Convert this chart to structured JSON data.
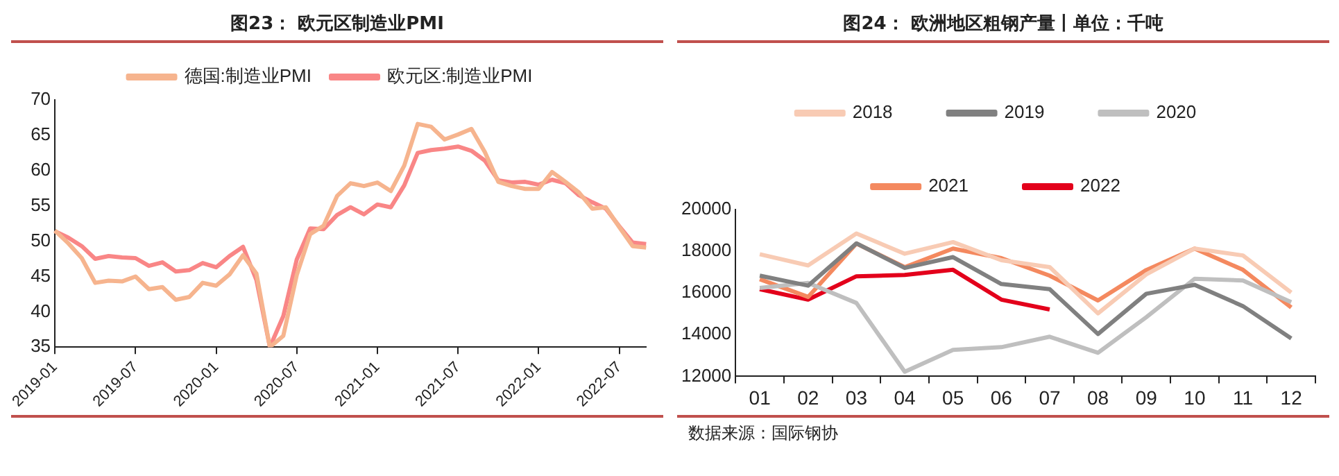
{
  "chart_data": [
    {
      "type": "line",
      "title": "图23： 欧元区制造业PMI",
      "categories": [
        "2019-01",
        null,
        null,
        null,
        null,
        null,
        "2019-07",
        null,
        null,
        null,
        null,
        null,
        "2020-01",
        null,
        null,
        null,
        null,
        null,
        "2020-07",
        null,
        null,
        null,
        null,
        null,
        "2021-01",
        null,
        null,
        null,
        null,
        null,
        "2021-07",
        null,
        null,
        null,
        null,
        null,
        "2022-01",
        null,
        null,
        null,
        null,
        null,
        "2022-07",
        null,
        null
      ],
      "series": [
        {
          "name": "德国:制造业PMI",
          "color": "#f6b48e",
          "values": [
            51.5,
            49.7,
            47.6,
            44.1,
            44.4,
            44.3,
            45.0,
            43.2,
            43.5,
            41.7,
            42.1,
            44.1,
            43.7,
            45.3,
            48.0,
            45.4,
            35,
            36.6,
            45.2,
            51.0,
            52.2,
            56.4,
            58.2,
            57.8,
            58.3,
            57.1,
            60.7,
            66.6,
            66.2,
            64.4,
            65.1,
            65.9,
            62.6,
            58.4,
            57.8,
            57.4,
            57.4,
            59.8,
            58.4,
            56.9,
            54.6,
            54.8,
            52.0,
            49.3,
            49.1
          ]
        },
        {
          "name": "欧元区:制造业PMI",
          "color": "#f98686",
          "values": [
            51.4,
            50.5,
            49.3,
            47.5,
            47.9,
            47.7,
            47.6,
            46.5,
            47.0,
            45.7,
            45.9,
            46.9,
            46.3,
            47.9,
            49.2,
            44.5,
            35,
            39.4,
            47.4,
            51.8,
            51.7,
            53.7,
            54.8,
            53.8,
            55.2,
            54.8,
            57.9,
            62.5,
            62.9,
            63.1,
            63.4,
            62.8,
            61.4,
            58.6,
            58.3,
            58.4,
            58.0,
            58.7,
            58.2,
            56.5,
            55.5,
            54.6,
            52.1,
            49.8,
            49.6
          ]
        }
      ],
      "ylim": [
        35,
        70
      ],
      "yticks": [
        35,
        40,
        45,
        50,
        55,
        60,
        65,
        70
      ],
      "legend": "top",
      "marker": "none"
    },
    {
      "type": "line",
      "title": "图24： 欧洲地区粗钢产量丨单位：千吨",
      "categories": [
        "01",
        "02",
        "03",
        "04",
        "05",
        "06",
        "07",
        "08",
        "09",
        "10",
        "11",
        "12"
      ],
      "series": [
        {
          "name": "2018",
          "color": "#f8cbb4",
          "values": [
            17860,
            17320,
            18850,
            17880,
            18440,
            17570,
            17240,
            15020,
            16890,
            18130,
            17800,
            16020
          ]
        },
        {
          "name": "2019",
          "color": "#808080",
          "values": [
            16830,
            16350,
            18380,
            17200,
            17720,
            16430,
            16180,
            14030,
            15960,
            16390,
            15370,
            13820
          ]
        },
        {
          "name": "2020",
          "color": "#bfbfbf",
          "values": [
            16240,
            16480,
            15520,
            12220,
            13270,
            13400,
            13900,
            13130,
            14840,
            16680,
            16600,
            15560
          ]
        },
        {
          "name": "2021",
          "color": "#f4895f",
          "values": [
            16660,
            15810,
            18370,
            17240,
            18130,
            17670,
            16830,
            15640,
            17100,
            18130,
            17110,
            15300
          ]
        },
        {
          "name": "2022",
          "color": "#e3001b",
          "values": [
            16180,
            15680,
            16800,
            16860,
            17110,
            15680,
            15210,
            null,
            null,
            null,
            null,
            null
          ]
        }
      ],
      "ylim": [
        12000,
        20000
      ],
      "yticks": [
        12000,
        14000,
        16000,
        18000,
        20000
      ],
      "legend": "top",
      "marker": "none",
      "annotations": [
        "数据来源：国际钢协"
      ]
    }
  ]
}
